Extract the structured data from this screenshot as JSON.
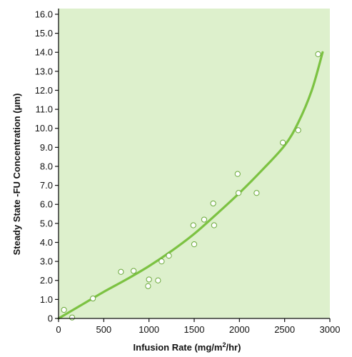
{
  "chart_data": {
    "type": "scatter",
    "title": "",
    "xlabel": {
      "prefix": "Infusion Rate (mg/m",
      "sup": "2",
      "suffix": "/hr)"
    },
    "ylabel": "Steady State -FU Concentration (μm)",
    "xlim": [
      0,
      3000
    ],
    "ylim": [
      0,
      16.3
    ],
    "x_ticks": [
      0,
      500,
      1000,
      1500,
      2000,
      2500,
      3000
    ],
    "x_tick_labels": [
      "0",
      "500",
      "1000",
      "1500",
      "2000",
      "2500",
      "3000"
    ],
    "y_ticks": [
      0,
      1,
      2,
      3,
      4,
      5,
      6,
      7,
      8,
      9,
      10,
      11,
      12,
      13,
      14,
      15,
      16
    ],
    "y_tick_labels": [
      "0",
      "1.0",
      "2.0",
      "3.0",
      "4.0",
      "5.0",
      "6.0",
      "7.0",
      "8.0",
      "9.0",
      "10.0",
      "11.0",
      "12.0",
      "13.0",
      "14.0",
      "15.0",
      "16.0"
    ],
    "grid": false,
    "colors": {
      "plot_background": "#ddf0cc",
      "curve": "#7cc242",
      "marker_fill": "#ffffff",
      "marker_stroke": "#6aa83a"
    },
    "points": [
      {
        "x": 60,
        "y": 0.45
      },
      {
        "x": 150,
        "y": 0.05
      },
      {
        "x": 380,
        "y": 1.05
      },
      {
        "x": 690,
        "y": 2.45
      },
      {
        "x": 830,
        "y": 2.5
      },
      {
        "x": 990,
        "y": 1.7
      },
      {
        "x": 1000,
        "y": 2.05
      },
      {
        "x": 1100,
        "y": 2.0
      },
      {
        "x": 1140,
        "y": 3.0
      },
      {
        "x": 1220,
        "y": 3.3
      },
      {
        "x": 1490,
        "y": 4.9
      },
      {
        "x": 1500,
        "y": 3.9
      },
      {
        "x": 1610,
        "y": 5.2
      },
      {
        "x": 1710,
        "y": 6.05
      },
      {
        "x": 1720,
        "y": 4.9
      },
      {
        "x": 1980,
        "y": 7.6
      },
      {
        "x": 1990,
        "y": 6.6
      },
      {
        "x": 2190,
        "y": 6.6
      },
      {
        "x": 2480,
        "y": 9.25
      },
      {
        "x": 2650,
        "y": 9.9
      },
      {
        "x": 2870,
        "y": 13.9
      }
    ],
    "fit_curve": [
      {
        "x": 0,
        "y": 0.0
      },
      {
        "x": 250,
        "y": 0.7
      },
      {
        "x": 500,
        "y": 1.4
      },
      {
        "x": 750,
        "y": 2.05
      },
      {
        "x": 1000,
        "y": 2.75
      },
      {
        "x": 1250,
        "y": 3.55
      },
      {
        "x": 1500,
        "y": 4.45
      },
      {
        "x": 1750,
        "y": 5.5
      },
      {
        "x": 2000,
        "y": 6.6
      },
      {
        "x": 2250,
        "y": 7.8
      },
      {
        "x": 2500,
        "y": 9.1
      },
      {
        "x": 2650,
        "y": 10.3
      },
      {
        "x": 2800,
        "y": 12.0
      },
      {
        "x": 2920,
        "y": 14.0
      }
    ]
  }
}
